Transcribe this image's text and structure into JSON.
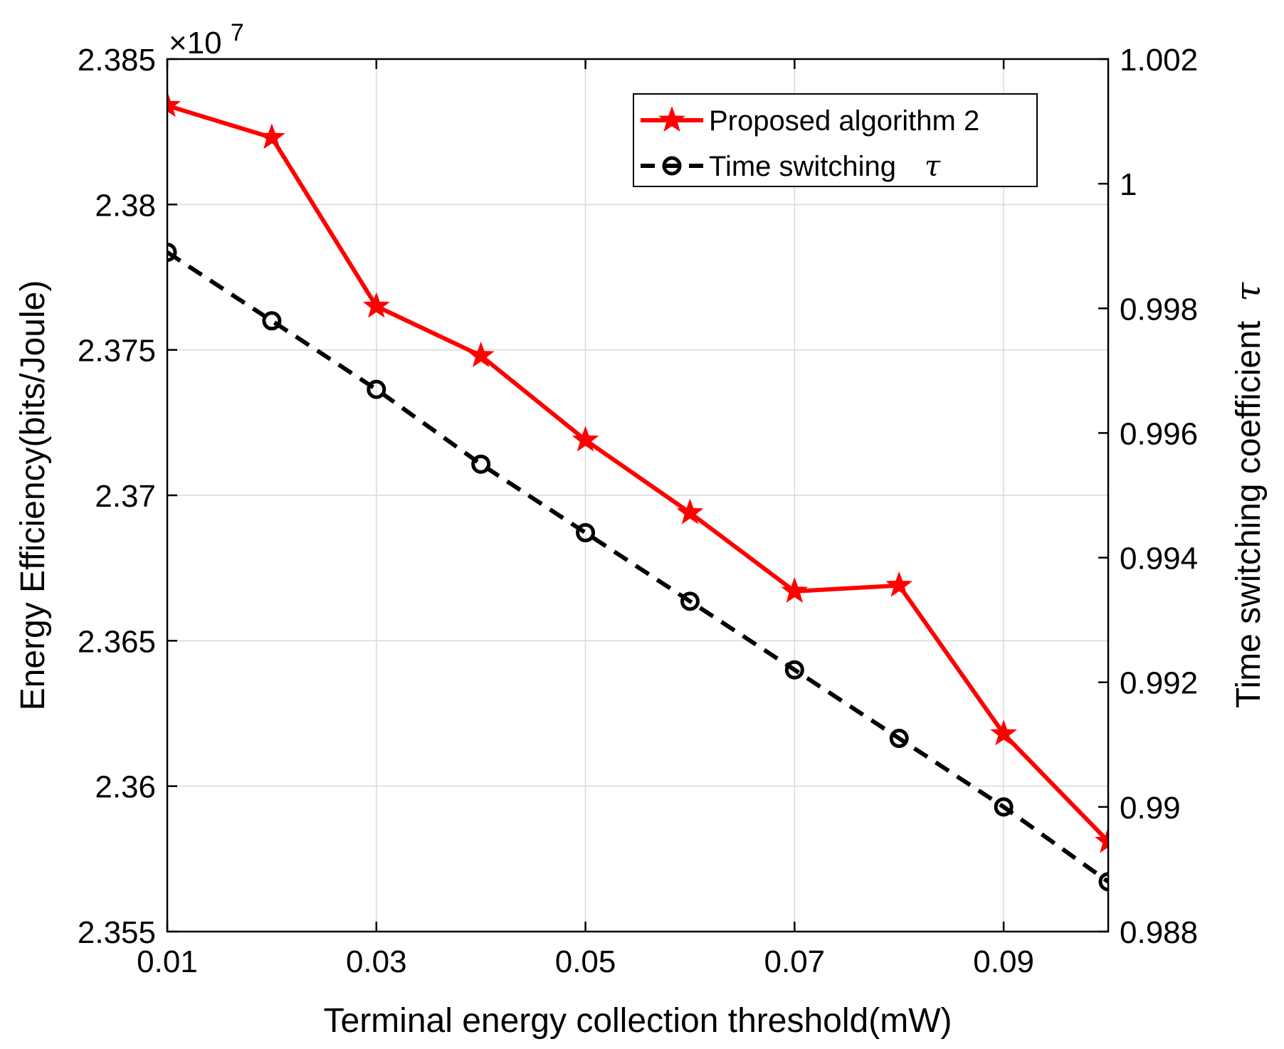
{
  "chart_data": {
    "type": "line",
    "title": "",
    "xlabel": "Terminal energy collection threshold(mW)",
    "ylabel_left": "Energy Efficiency(bits/Joule)",
    "ylabel_right_text": "Time switching coefficient",
    "ylabel_right_symbol": "τ",
    "y_left_multiplier": "×10",
    "y_left_exponent": "7",
    "xlim": [
      0.01,
      0.1
    ],
    "ylim_left": [
      2.355,
      2.385
    ],
    "ylim_right": [
      0.988,
      1.002
    ],
    "x_ticks": [
      0.01,
      0.03,
      0.05,
      0.07,
      0.09
    ],
    "x_tick_labels": [
      "0.01",
      "0.03",
      "0.05",
      "0.07",
      "0.09"
    ],
    "y_left_ticks": [
      2.355,
      2.36,
      2.365,
      2.37,
      2.375,
      2.38,
      2.385
    ],
    "y_left_tick_labels": [
      "2.355",
      "2.36",
      "2.365",
      "2.37",
      "2.375",
      "2.38",
      "2.385"
    ],
    "y_right_ticks": [
      0.988,
      0.99,
      0.992,
      0.994,
      0.996,
      0.998,
      1.0,
      1.002
    ],
    "y_right_tick_labels": [
      "0.988",
      "0.99",
      "0.992",
      "0.994",
      "0.996",
      "0.998",
      "1",
      "1.002"
    ],
    "grid": true,
    "legend_position": "top-right",
    "series": [
      {
        "name": "Proposed algorithm 2",
        "axis": "left",
        "color": "#ff0000",
        "marker": "star",
        "line_style": "solid",
        "x": [
          0.01,
          0.02,
          0.03,
          0.04,
          0.05,
          0.06,
          0.07,
          0.08,
          0.09,
          0.1
        ],
        "values": [
          2.3834,
          2.3823,
          2.3765,
          2.3748,
          2.3719,
          2.3694,
          2.3667,
          2.3669,
          2.3618,
          2.3581
        ]
      },
      {
        "name": "Time switching",
        "name_symbol": "τ",
        "axis": "right",
        "color": "#000000",
        "marker": "circle",
        "line_style": "dashed",
        "x": [
          0.01,
          0.02,
          0.03,
          0.04,
          0.05,
          0.06,
          0.07,
          0.08,
          0.09,
          0.1
        ],
        "values": [
          0.9989,
          0.9978,
          0.9967,
          0.9955,
          0.9944,
          0.9933,
          0.9922,
          0.9911,
          0.99,
          0.9888
        ]
      }
    ]
  }
}
